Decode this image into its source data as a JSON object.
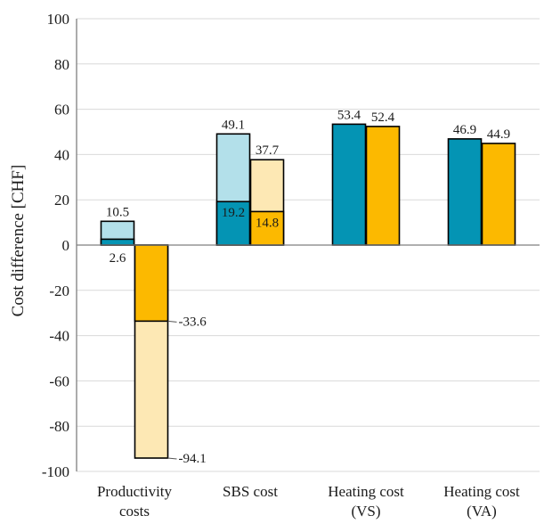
{
  "chart_data": {
    "type": "bar",
    "ylabel": "Cost difference [CHF]",
    "ylim": [
      -100,
      100
    ],
    "yticks": [
      100,
      80,
      60,
      40,
      20,
      0,
      -20,
      -40,
      -60,
      -80,
      -100
    ],
    "grid": true,
    "categories": [
      [
        "Productivity",
        "costs"
      ],
      [
        "SBS cost"
      ],
      [
        "Heating cost",
        "(VS)"
      ],
      [
        "Heating cost",
        "(VA)"
      ]
    ],
    "colors": {
      "teal": "#0494b4",
      "light_blue": "#b3e0ea",
      "orange": "#fcb900",
      "light_orange": "#fde8b4",
      "grid": "#d9d9d9",
      "axis": "#7f7f7f"
    },
    "bars": [
      {
        "category": 0,
        "slot": 0,
        "total": 10.5,
        "inner": 2.6,
        "total_color": "light_blue",
        "inner_color": "teal",
        "total_label": "10.5",
        "inner_label": "2.6"
      },
      {
        "category": 0,
        "slot": 1,
        "total": -94.1,
        "inner": -33.6,
        "total_color": "light_orange",
        "inner_color": "orange",
        "total_label": "-94.1",
        "inner_label": "-33.6"
      },
      {
        "category": 1,
        "slot": 0,
        "total": 49.1,
        "inner": 19.2,
        "total_color": "light_blue",
        "inner_color": "teal",
        "total_label": "49.1",
        "inner_label": "19.2"
      },
      {
        "category": 1,
        "slot": 1,
        "total": 37.7,
        "inner": 14.8,
        "total_color": "light_orange",
        "inner_color": "orange",
        "total_label": "37.7",
        "inner_label": "14.8"
      },
      {
        "category": 2,
        "slot": 0,
        "total": 53.4,
        "total_color": "teal",
        "total_label": "53.4"
      },
      {
        "category": 2,
        "slot": 1,
        "total": 52.4,
        "total_color": "orange",
        "total_label": "52.4"
      },
      {
        "category": 3,
        "slot": 0,
        "total": 46.9,
        "total_color": "teal",
        "total_label": "46.9"
      },
      {
        "category": 3,
        "slot": 1,
        "total": 44.9,
        "total_color": "orange",
        "total_label": "44.9"
      }
    ]
  }
}
